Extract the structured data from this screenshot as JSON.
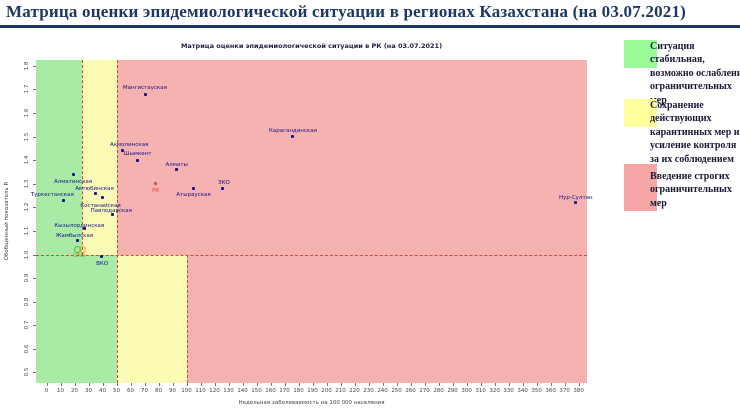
{
  "header": {
    "title": "Матрица оценки эпидемиологической ситуации в регионах Казахстана (на 03.07.2021)"
  },
  "chart_data": {
    "type": "scatter",
    "title": "Матрица оценки эпидемиологической ситуации в РК (на 03.07.2021)",
    "xlabel": "Недельная заболеваемость на 100 000 населения",
    "ylabel": "Обобщенный показатель R",
    "xlim": [
      -7.5,
      386
    ],
    "ylim": [
      0.455,
      1.825
    ],
    "x_ticks": [
      0,
      10,
      20,
      30,
      40,
      50,
      60,
      70,
      80,
      90,
      100,
      110,
      120,
      130,
      140,
      150,
      160,
      170,
      180,
      190,
      200,
      210,
      220,
      230,
      240,
      250,
      260,
      270,
      280,
      290,
      300,
      310,
      320,
      330,
      340,
      350,
      360,
      370,
      380
    ],
    "y_ticks": [
      0.5,
      0.6,
      0.7,
      0.8,
      0.9,
      1.0,
      1.1,
      1.2,
      1.3,
      1.4,
      1.5,
      1.6,
      1.7,
      1.8
    ],
    "threshold_y": 1.0,
    "threshold_x_above_1": [
      25,
      50
    ],
    "threshold_x_below_1": [
      50,
      100
    ],
    "boundary_color": "#e0452f",
    "zone_colors": {
      "green": "#a9eba4",
      "yellow": "#fbfbb6",
      "red": "#f6b1b1"
    },
    "zones": [
      {
        "x0": -7.5,
        "x1": 25,
        "y0": 1.0,
        "y1": 1.825,
        "color": "#a9eba4"
      },
      {
        "x0": 25,
        "x1": 50,
        "y0": 1.0,
        "y1": 1.825,
        "color": "#fbfbb6"
      },
      {
        "x0": 50,
        "x1": 386,
        "y0": 1.0,
        "y1": 1.825,
        "color": "#f6b1b1"
      },
      {
        "x0": -7.5,
        "x1": 50,
        "y0": 0.455,
        "y1": 1.0,
        "color": "#a9eba4"
      },
      {
        "x0": 50,
        "x1": 100,
        "y0": 0.455,
        "y1": 1.0,
        "color": "#fbfbb6"
      },
      {
        "x0": 100,
        "x1": 386,
        "y0": 0.455,
        "y1": 1.0,
        "color": "#f6b1b1"
      }
    ],
    "boundaries": [
      {
        "type": "v",
        "x": 25,
        "y0": 1.0,
        "y1": 1.825
      },
      {
        "type": "v",
        "x": 50,
        "y0": 0.455,
        "y1": 1.825
      },
      {
        "type": "v",
        "x": 100,
        "y0": 0.455,
        "y1": 1.0
      },
      {
        "type": "h",
        "y": 1.0,
        "x0": -7.5,
        "x1": 386
      }
    ],
    "points": [
      {
        "label": "Мангистауская",
        "x": 71,
        "y": 1.68,
        "ox": -1,
        "oy": -9
      },
      {
        "label": "Карагандинская",
        "x": 176,
        "y": 1.5,
        "ox": 0,
        "oy": -9
      },
      {
        "label": "Акмолинская",
        "x": 54,
        "y": 1.44,
        "ox": 7,
        "oy": -9
      },
      {
        "label": "Шымкент",
        "x": 65,
        "y": 1.4,
        "ox": 0,
        "oy": -9
      },
      {
        "label": "Алматы",
        "x": 93,
        "y": 1.36,
        "ox": 0,
        "oy": -8
      },
      {
        "label": "РК",
        "x": 78,
        "y": 1.3,
        "ox": 0,
        "oy": 4,
        "marker_color": "#e04343",
        "label_color": "#e04343"
      },
      {
        "label": "Атырауская",
        "x": 105,
        "y": 1.28,
        "ox": 0,
        "oy": 4
      },
      {
        "label": "ЗКО",
        "x": 126,
        "y": 1.28,
        "ox": 1,
        "oy": -8
      },
      {
        "label": "Нур-Султан",
        "x": 378,
        "y": 1.22,
        "ox": 0,
        "oy": -8
      },
      {
        "label": "Алматинская",
        "x": 19,
        "y": 1.34,
        "ox": 0,
        "oy": 5
      },
      {
        "label": "Актюбинская",
        "x": 35,
        "y": 1.26,
        "ox": -1,
        "oy": -7
      },
      {
        "label": "Туркестанская",
        "x": 12,
        "y": 1.23,
        "ox": -11,
        "oy": -8
      },
      {
        "label": "Костанайская",
        "x": 40,
        "y": 1.24,
        "ox": -2,
        "oy": 5
      },
      {
        "label": "Павлодарская",
        "x": 47,
        "y": 1.17,
        "ox": -1,
        "oy": -6
      },
      {
        "label": "Кызылординская",
        "x": 27,
        "y": 1.11,
        "ox": -5,
        "oy": -6
      },
      {
        "label": "Жамбылская",
        "x": 22,
        "y": 1.06,
        "ox": -3,
        "oy": -7
      },
      {
        "label": "СКО",
        "x": 24,
        "y": 1.02,
        "ox": -1,
        "oy": 3,
        "marker": "none",
        "label_color": "#a08600"
      },
      {
        "label": "",
        "x": 22,
        "y": 1.02,
        "marker": "circle",
        "edge_color": "#55b24e"
      },
      {
        "label": "",
        "x": 26,
        "y": 1.02,
        "marker": "circle",
        "edge_color": "#e0a23c"
      },
      {
        "label": "ВКО",
        "x": 39,
        "y": 0.99,
        "ox": 1,
        "oy": 4
      }
    ]
  },
  "legend": {
    "items": [
      {
        "color": "#98fb98",
        "lines": [
          "Ситуация",
          "стабильная,",
          "возможно ослабление",
          "ограничительных",
          "мер"
        ],
        "text": "Ситуация стабильная, возможно ослабление ограничительных мер"
      },
      {
        "color": "#ffff9e",
        "lines": [
          "Сохранение",
          "действующих",
          "карантинных мер и",
          "усиление контроля",
          "за их соблюдением"
        ],
        "text": "Сохранение действующих карантинных мер и усиление контроля за их соблюдением"
      },
      {
        "color": "#f7a6a6",
        "lines": [
          "Введение строгих",
          "ограничительных",
          "мер"
        ],
        "text": "Введение строгих ограничительных мер"
      }
    ]
  }
}
